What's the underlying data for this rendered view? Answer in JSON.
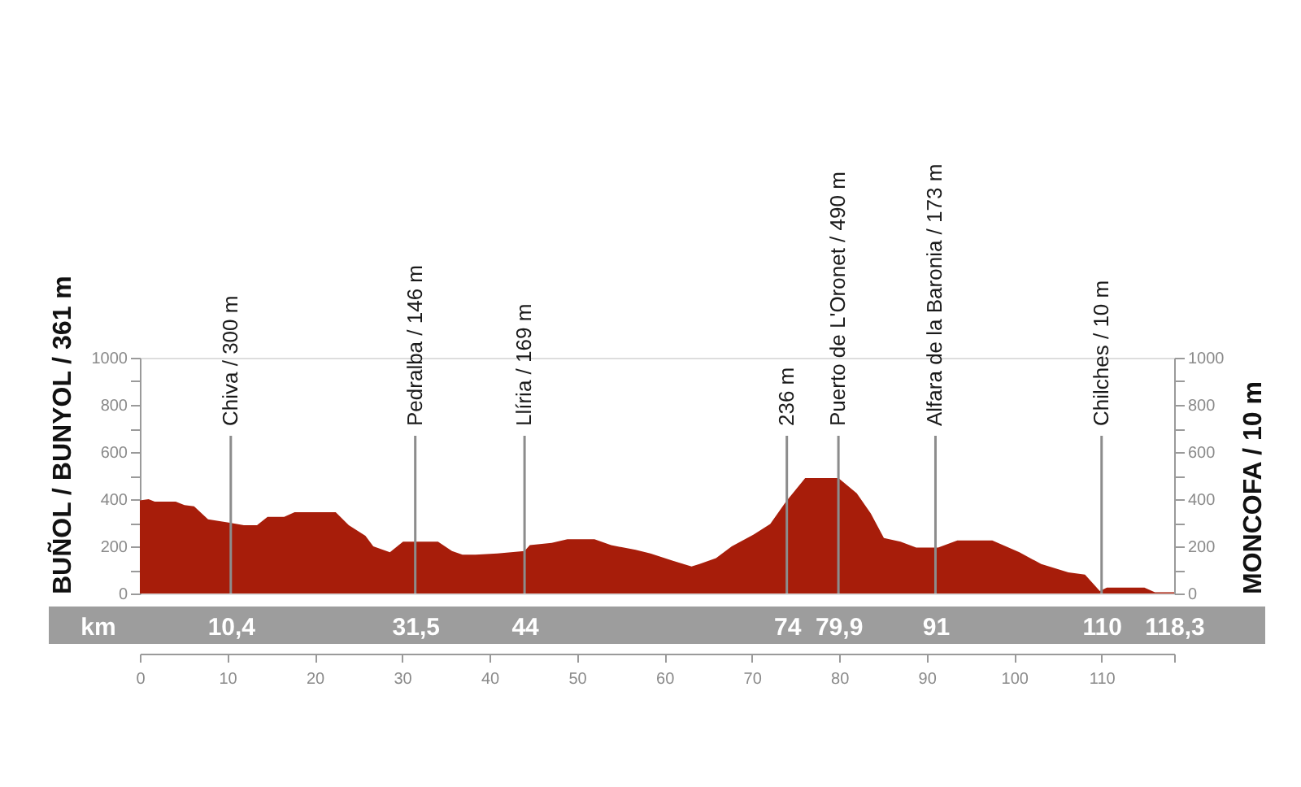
{
  "chart_data": {
    "type": "area",
    "ylabel": "BUÑOL / BUNYOL / 361 m",
    "y2label": "MONCOFA / 10 m",
    "x2label": "km",
    "x": [
      0,
      1.0,
      1.7,
      4.1,
      5.1,
      6.2,
      7.8,
      10.3,
      11.9,
      13.4,
      14.6,
      16.5,
      17.7,
      22.4,
      23.9,
      25.8,
      26.7,
      28.6,
      30.1,
      34.1,
      35.7,
      36.9,
      38.4,
      40.9,
      44.0,
      44.6,
      47.1,
      48.9,
      52.0,
      53.9,
      56.7,
      58.4,
      60.9,
      63.1,
      64.0,
      65.9,
      67.7,
      70.2,
      72.1,
      73.9,
      76.1,
      79.9,
      82.0,
      83.6,
      85.1,
      87.0,
      88.8,
      91.3,
      93.5,
      97.5,
      100.6,
      103.1,
      106.2,
      108.1,
      109.8,
      110.6,
      114.9,
      116.1,
      118.3
    ],
    "series": [
      {
        "color": "#a71d0a",
        "values": [
          395,
          400,
          390,
          390,
          375,
          370,
          315,
          300,
          290,
          290,
          325,
          325,
          345,
          345,
          290,
          245,
          200,
          175,
          220,
          220,
          180,
          165,
          165,
          170,
          180,
          205,
          215,
          230,
          230,
          205,
          185,
          170,
          140,
          115,
          125,
          150,
          200,
          250,
          295,
          390,
          490,
          490,
          425,
          340,
          235,
          220,
          195,
          195,
          225,
          225,
          175,
          125,
          90,
          80,
          10,
          25,
          25,
          5,
          5
        ]
      }
    ],
    "xlim": [
      0,
      118.3
    ],
    "xticks": [
      0,
      10,
      20,
      30,
      40,
      50,
      60,
      70,
      80,
      90,
      100,
      110,
      {
        "value": 118.3,
        "label": null
      }
    ],
    "x2lim": [
      0,
      118.3
    ],
    "x2ticks": [
      {
        "value": 10.4,
        "label": "10,4"
      },
      {
        "value": 31.5,
        "label": "31,5"
      },
      44,
      74,
      {
        "value": 79.9,
        "label": "79,9"
      },
      91,
      110,
      {
        "value": 118.3,
        "label": "118,3"
      }
    ],
    "ylim": [
      0,
      1000
    ],
    "yticks": [
      0,
      {
        "value": 100,
        "label": null
      },
      200,
      {
        "value": 300,
        "label": null
      },
      400,
      {
        "value": 500,
        "label": null
      },
      600,
      {
        "value": 700,
        "label": null
      },
      800,
      {
        "value": 900,
        "label": null
      },
      1000
    ],
    "y2lim": [
      0,
      1000
    ],
    "y2ticks": [
      0,
      {
        "value": 100,
        "label": null
      },
      200,
      {
        "value": 300,
        "label": null
      },
      400,
      {
        "value": 500,
        "label": null
      },
      600,
      {
        "value": 700,
        "label": null
      },
      800,
      {
        "value": 900,
        "label": null
      },
      1000
    ],
    "ref_lines": [
      {
        "axis": "x",
        "value": 10.4,
        "label": "Chiva / 300 m",
        "color": "#8c8c8c"
      },
      {
        "axis": "x",
        "value": 31.5,
        "label": "Pedralba / 146 m",
        "color": "#8c8c8c"
      },
      {
        "axis": "x",
        "value": 44,
        "label": "Llíria / 169 m",
        "color": "#8c8c8c"
      },
      {
        "axis": "x",
        "value": 74,
        "label": "236 m",
        "color": "#8c8c8c"
      },
      {
        "axis": "x",
        "value": 79.9,
        "label": "Puerto de L'Oronet / 490 m",
        "color": "#8c8c8c"
      },
      {
        "axis": "x",
        "value": 91,
        "label": "Alfara de la Baronia / 173 m",
        "color": "#8c8c8c"
      },
      {
        "axis": "x",
        "value": 110,
        "label": "Chilches / 10 m",
        "color": "#8c8c8c"
      }
    ]
  }
}
